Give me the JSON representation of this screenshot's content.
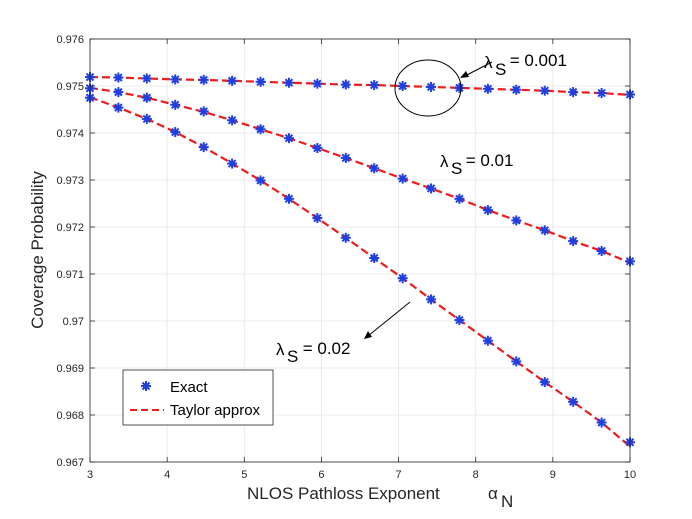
{
  "chart_data": {
    "type": "line",
    "title": "",
    "xlabel": "NLOS Pathloss Exponent",
    "xlabel_symbol": "α",
    "xlabel_subscript": "N",
    "ylabel": "Coverage Probability",
    "xlim": [
      3,
      10
    ],
    "ylim": [
      0.967,
      0.976
    ],
    "x_ticks": [
      3,
      4,
      5,
      6,
      7,
      8,
      9,
      10
    ],
    "y_ticks": [
      0.967,
      0.968,
      0.969,
      0.97,
      0.971,
      0.972,
      0.973,
      0.974,
      0.975,
      0.976
    ],
    "x_tick_labels": [
      "3",
      "4",
      "5",
      "6",
      "7",
      "8",
      "9",
      "10"
    ],
    "y_tick_labels": [
      "0.967",
      "0.968",
      "0.969",
      "0.97",
      "0.971",
      "0.972",
      "0.973",
      "0.974",
      "0.975",
      "0.976"
    ],
    "grid": true,
    "legend_position": "bottom-left",
    "legend": [
      {
        "label": "Exact",
        "style": "marker",
        "color": "#1f3fe0"
      },
      {
        "label": "Taylor approx",
        "style": "dashed",
        "color": "#ee1c1c"
      }
    ],
    "x": [
      3.0,
      3.368,
      3.737,
      4.105,
      4.474,
      4.842,
      5.211,
      5.579,
      5.947,
      6.316,
      6.684,
      7.053,
      7.421,
      7.789,
      8.158,
      8.526,
      8.895,
      9.263,
      9.632,
      10.0
    ],
    "series": [
      {
        "name": "λS = 0.001",
        "exact": [
          0.97519,
          0.97518,
          0.97516,
          0.97514,
          0.97513,
          0.97511,
          0.97509,
          0.97507,
          0.97505,
          0.97503,
          0.97502,
          0.975,
          0.97498,
          0.97496,
          0.97494,
          0.97492,
          0.9749,
          0.97487,
          0.97485,
          0.97482
        ],
        "taylor": [
          0.97519,
          0.97518,
          0.97516,
          0.97514,
          0.97513,
          0.97511,
          0.97509,
          0.97507,
          0.97505,
          0.97503,
          0.97502,
          0.975,
          0.97498,
          0.97496,
          0.97494,
          0.97492,
          0.9749,
          0.97487,
          0.97485,
          0.97481
        ]
      },
      {
        "name": "λS = 0.01",
        "exact": [
          0.97495,
          0.97487,
          0.97475,
          0.9746,
          0.97446,
          0.97427,
          0.97408,
          0.97389,
          0.97368,
          0.97347,
          0.97325,
          0.97303,
          0.97282,
          0.9726,
          0.97236,
          0.97214,
          0.97193,
          0.9717,
          0.97149,
          0.97127
        ],
        "taylor": [
          0.97496,
          0.97487,
          0.97475,
          0.9746,
          0.97445,
          0.97427,
          0.97408,
          0.97389,
          0.97368,
          0.97347,
          0.97325,
          0.97303,
          0.97282,
          0.9726,
          0.97236,
          0.97214,
          0.97193,
          0.9717,
          0.97149,
          0.97124
        ]
      },
      {
        "name": "λS = 0.02",
        "exact": [
          0.97475,
          0.97454,
          0.9743,
          0.97402,
          0.9737,
          0.97335,
          0.97299,
          0.9726,
          0.97219,
          0.97177,
          0.97134,
          0.97091,
          0.97046,
          0.97002,
          0.96958,
          0.96914,
          0.9687,
          0.96828,
          0.96784,
          0.96742
        ],
        "taylor": [
          0.97476,
          0.97454,
          0.9743,
          0.97402,
          0.9737,
          0.97335,
          0.97299,
          0.9726,
          0.97219,
          0.97177,
          0.97134,
          0.97091,
          0.97046,
          0.97002,
          0.96958,
          0.96914,
          0.9687,
          0.96828,
          0.96784,
          0.96733
        ]
      }
    ],
    "annotations": [
      {
        "label": "λ",
        "subscript": "S",
        "value_text": " = 0.001"
      },
      {
        "label": "λ",
        "subscript": "S",
        "value_text": " = 0.01"
      },
      {
        "label": "λ",
        "subscript": "S",
        "value_text": " = 0.02"
      }
    ]
  }
}
